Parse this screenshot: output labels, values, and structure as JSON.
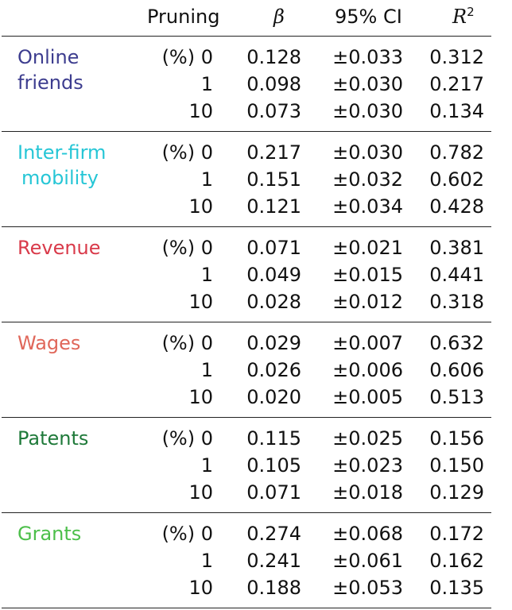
{
  "chart_data": {
    "type": "table",
    "columns": {
      "pruning": "Pruning",
      "beta": "β",
      "ci": "95% CI",
      "r2_base": "R",
      "r2_sup": "2"
    },
    "groups": [
      {
        "name_lines": [
          "Online",
          "friends"
        ],
        "color": "#3d3d8f",
        "rows": [
          {
            "pruning": "(%) 0",
            "beta": "0.128",
            "ci": "±0.033",
            "r2": "0.312"
          },
          {
            "pruning": "1",
            "beta": "0.098",
            "ci": "±0.030",
            "r2": "0.217"
          },
          {
            "pruning": "10",
            "beta": "0.073",
            "ci": "±0.030",
            "r2": "0.134"
          }
        ]
      },
      {
        "name_lines": [
          "Inter-firm",
          "mobility"
        ],
        "color": "#26c6d6",
        "rows": [
          {
            "pruning": "(%) 0",
            "beta": "0.217",
            "ci": "±0.030",
            "r2": "0.782"
          },
          {
            "pruning": "1",
            "beta": "0.151",
            "ci": "±0.032",
            "r2": "0.602"
          },
          {
            "pruning": "10",
            "beta": "0.121",
            "ci": "±0.034",
            "r2": "0.428"
          }
        ]
      },
      {
        "name_lines": [
          "Revenue"
        ],
        "color": "#d93a4a",
        "rows": [
          {
            "pruning": "(%) 0",
            "beta": "0.071",
            "ci": "±0.021",
            "r2": "0.381"
          },
          {
            "pruning": "1",
            "beta": "0.049",
            "ci": "±0.015",
            "r2": "0.441"
          },
          {
            "pruning": "10",
            "beta": "0.028",
            "ci": "±0.012",
            "r2": "0.318"
          }
        ]
      },
      {
        "name_lines": [
          "Wages"
        ],
        "color": "#e0675a",
        "rows": [
          {
            "pruning": "(%) 0",
            "beta": "0.029",
            "ci": "±0.007",
            "r2": "0.632"
          },
          {
            "pruning": "1",
            "beta": "0.026",
            "ci": "±0.006",
            "r2": "0.606"
          },
          {
            "pruning": "10",
            "beta": "0.020",
            "ci": "±0.005",
            "r2": "0.513"
          }
        ]
      },
      {
        "name_lines": [
          "Patents"
        ],
        "color": "#1f7a3a",
        "rows": [
          {
            "pruning": "(%) 0",
            "beta": "0.115",
            "ci": "±0.025",
            "r2": "0.156"
          },
          {
            "pruning": "1",
            "beta": "0.105",
            "ci": "±0.023",
            "r2": "0.150"
          },
          {
            "pruning": "10",
            "beta": "0.071",
            "ci": "±0.018",
            "r2": "0.129"
          }
        ]
      },
      {
        "name_lines": [
          "Grants"
        ],
        "color": "#4cbf4a",
        "rows": [
          {
            "pruning": "(%) 0",
            "beta": "0.274",
            "ci": "±0.068",
            "r2": "0.172"
          },
          {
            "pruning": "1",
            "beta": "0.241",
            "ci": "±0.061",
            "r2": "0.162"
          },
          {
            "pruning": "10",
            "beta": "0.188",
            "ci": "±0.053",
            "r2": "0.135"
          }
        ]
      }
    ]
  }
}
